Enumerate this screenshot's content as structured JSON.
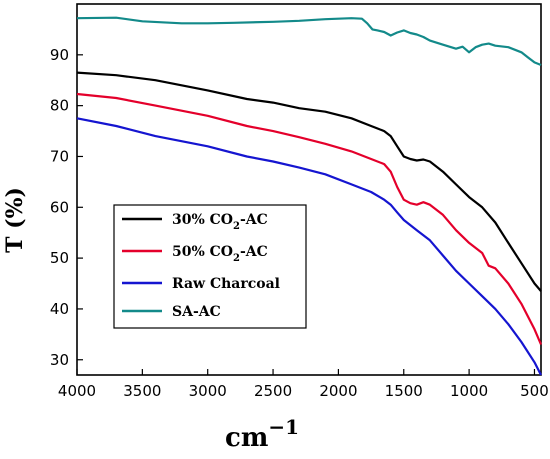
{
  "chart_data": {
    "type": "line",
    "title": "",
    "xlabel": "cm",
    "xlabel_superscript": "−1",
    "ylabel": "T (%)",
    "x_reversed": true,
    "xlim": [
      4000,
      450
    ],
    "ylim": [
      27,
      100
    ],
    "xticks": [
      4000,
      3500,
      3000,
      2500,
      2000,
      1500,
      1000,
      500
    ],
    "yticks": [
      30,
      40,
      50,
      60,
      70,
      80,
      90
    ],
    "grid": false,
    "legend_position": "lower-left",
    "legend": [
      {
        "prefix": "30% CO",
        "sub": "2",
        "suffix": "-AC"
      },
      {
        "prefix": "50% CO",
        "sub": "2",
        "suffix": "-AC"
      },
      {
        "prefix": "Raw Charcoal",
        "sub": "",
        "suffix": ""
      },
      {
        "prefix": "SA-AC",
        "sub": "",
        "suffix": ""
      }
    ],
    "series": [
      {
        "color": "#000000",
        "x": [
          4000,
          3700,
          3400,
          3000,
          2700,
          2500,
          2300,
          2100,
          1900,
          1750,
          1650,
          1600,
          1550,
          1500,
          1450,
          1400,
          1350,
          1300,
          1200,
          1100,
          1000,
          900,
          800,
          700,
          600,
          500,
          450
        ],
        "y": [
          86.5,
          86.0,
          85.0,
          83.0,
          81.3,
          80.6,
          79.5,
          78.8,
          77.5,
          76.0,
          75.0,
          74.0,
          72.0,
          70.0,
          69.5,
          69.2,
          69.4,
          69.0,
          67.0,
          64.5,
          62.0,
          60.0,
          57.0,
          53.0,
          49.0,
          45.0,
          43.5
        ]
      },
      {
        "color": "#e4002b",
        "x": [
          4000,
          3700,
          3400,
          3000,
          2700,
          2500,
          2300,
          2100,
          1900,
          1750,
          1650,
          1600,
          1550,
          1500,
          1450,
          1400,
          1350,
          1300,
          1200,
          1100,
          1000,
          900,
          850,
          800,
          700,
          600,
          500,
          450
        ],
        "y": [
          82.3,
          81.5,
          80.0,
          78.0,
          76.0,
          75.0,
          73.8,
          72.5,
          71.0,
          69.5,
          68.5,
          67.0,
          64.0,
          61.5,
          60.8,
          60.5,
          61.0,
          60.5,
          58.5,
          55.5,
          53.0,
          51.0,
          48.5,
          48.0,
          45.0,
          41.0,
          36.0,
          33.0
        ]
      },
      {
        "color": "#1515d0",
        "x": [
          4000,
          3700,
          3400,
          3000,
          2700,
          2500,
          2300,
          2100,
          1900,
          1750,
          1650,
          1600,
          1550,
          1500,
          1450,
          1400,
          1300,
          1200,
          1100,
          1000,
          900,
          800,
          700,
          600,
          500,
          450
        ],
        "y": [
          77.5,
          76.0,
          74.0,
          72.0,
          70.0,
          69.0,
          67.8,
          66.5,
          64.5,
          63.0,
          61.5,
          60.5,
          59.0,
          57.5,
          56.5,
          55.5,
          53.5,
          50.5,
          47.5,
          45.0,
          42.5,
          40.0,
          37.0,
          33.5,
          29.5,
          27.0
        ]
      },
      {
        "color": "#138a8a",
        "x": [
          4000,
          3700,
          3500,
          3200,
          3000,
          2800,
          2500,
          2300,
          2100,
          1900,
          1820,
          1780,
          1740,
          1700,
          1650,
          1600,
          1550,
          1500,
          1450,
          1400,
          1350,
          1300,
          1200,
          1100,
          1050,
          1000,
          950,
          900,
          850,
          800,
          700,
          600,
          550,
          500,
          450
        ],
        "y": [
          97.2,
          97.3,
          96.6,
          96.2,
          96.2,
          96.3,
          96.5,
          96.7,
          97.0,
          97.2,
          97.1,
          96.2,
          95.0,
          94.8,
          94.5,
          93.8,
          94.4,
          94.8,
          94.3,
          94.0,
          93.5,
          92.8,
          92.0,
          91.2,
          91.6,
          90.5,
          91.5,
          92.0,
          92.2,
          91.8,
          91.5,
          90.5,
          89.5,
          88.5,
          88.0
        ]
      }
    ]
  }
}
